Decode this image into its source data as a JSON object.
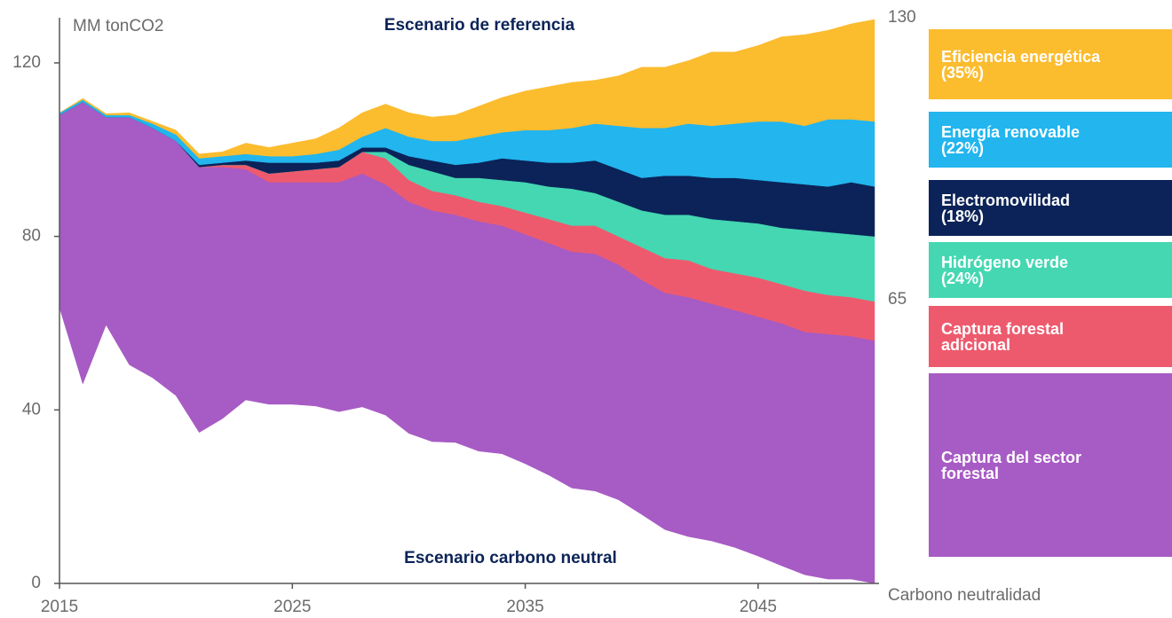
{
  "chart_data": {
    "type": "stacked_area",
    "title": "Escenario de referencia",
    "y_label": "MM tonCO2",
    "x": [
      2015,
      2016,
      2017,
      2018,
      2019,
      2020,
      2021,
      2022,
      2023,
      2024,
      2025,
      2026,
      2027,
      2028,
      2029,
      2030,
      2031,
      2032,
      2033,
      2034,
      2035,
      2036,
      2037,
      2038,
      2039,
      2040,
      2041,
      2042,
      2043,
      2044,
      2045,
      2046,
      2047,
      2048,
      2049,
      2050
    ],
    "xlim": [
      2015,
      2050
    ],
    "xticks": [
      2015,
      2025,
      2035,
      2045
    ],
    "ylim": [
      0,
      130
    ],
    "yticks": [
      0,
      40,
      80,
      120
    ],
    "end_labels": [
      130,
      65
    ],
    "end_note": "Carbono neutralidad",
    "series": [
      {
        "name": "Escenario carbono neutral",
        "color": "#ffffff",
        "legend": false,
        "values": [
          63.6,
          46,
          59.6,
          50.4,
          47.4,
          43.3,
          34.8,
          38,
          42.3,
          41.3,
          41.3,
          40.9,
          39.6,
          40.7,
          38.8,
          34.6,
          32.7,
          32.5,
          30.5,
          29.9,
          27.6,
          25,
          22,
          21.3,
          19.3,
          15.9,
          12.4,
          10.8,
          9.8,
          8.3,
          6.3,
          4.1,
          2,
          1,
          1,
          0
        ]
      },
      {
        "name": "Captura del sector\nforestal",
        "color": "#a75bc4",
        "values": [
          44.4,
          65,
          47.9,
          57.1,
          57.6,
          58.7,
          61.2,
          58,
          53.2,
          51.2,
          51.2,
          51.6,
          52.9,
          53.8,
          53.2,
          53.4,
          53.3,
          52.5,
          53,
          52.6,
          52.9,
          53.5,
          54.5,
          54.7,
          54.2,
          54.1,
          54.6,
          55.2,
          54.7,
          54.7,
          55.2,
          55.9,
          56,
          56.5,
          56,
          56
        ]
      },
      {
        "name": "Captura forestal\nadicional",
        "color": "#ee5a6d",
        "values": [
          0,
          0,
          0,
          0,
          0,
          0,
          0,
          0.5,
          1,
          2,
          2.5,
          3,
          3.5,
          5,
          6,
          5,
          4.5,
          4.5,
          4.5,
          4.5,
          5,
          5.5,
          6,
          6.5,
          6.5,
          7.5,
          8,
          8.5,
          8,
          8.5,
          9,
          9,
          9.5,
          9,
          9,
          9
        ]
      },
      {
        "name": "Hidrógeno verde\n(24%)",
        "color": "#44d7b2",
        "values": [
          0,
          0,
          0,
          0,
          0,
          0,
          0,
          0,
          0,
          0,
          0,
          0,
          0,
          0,
          1.5,
          3.5,
          4.5,
          4,
          5.5,
          6,
          7,
          7.5,
          8.5,
          7.5,
          8,
          8.5,
          10,
          10.5,
          11.5,
          12,
          12.5,
          13,
          14,
          14.5,
          14.5,
          15
        ]
      },
      {
        "name": "Electromovilidad\n(18%)",
        "color": "#0b2358",
        "values": [
          0,
          0,
          0,
          0,
          0,
          0,
          0.5,
          0.5,
          1,
          2.5,
          2,
          1.5,
          1.5,
          1,
          1,
          2,
          2.5,
          3,
          3.5,
          5,
          5,
          5.5,
          6,
          7.5,
          7.5,
          7.5,
          9,
          9,
          9.5,
          10,
          10,
          10.5,
          10.5,
          10.5,
          12,
          11.5
        ]
      },
      {
        "name": "Energía renovable\n(22%)",
        "color": "#22b5ee",
        "values": [
          0.5,
          0.5,
          0.5,
          0.5,
          1,
          1.5,
          1.5,
          1.5,
          1.5,
          1.5,
          1.5,
          2,
          2.5,
          2.5,
          4.5,
          4.5,
          4.5,
          5.5,
          6,
          6,
          7,
          7.5,
          8,
          8.5,
          10,
          11.5,
          11,
          12,
          12,
          12.5,
          13.5,
          14,
          13.5,
          15.5,
          14.5,
          15
        ]
      },
      {
        "name": "Eficiencia energética\n(35%)",
        "color": "#fbbc2e",
        "values": [
          0,
          0.3,
          0.3,
          0.5,
          0.5,
          1,
          1,
          1,
          2.5,
          2,
          3,
          3.5,
          5,
          5.5,
          5.5,
          5.5,
          5.5,
          6,
          7,
          8,
          9,
          10,
          10.5,
          10,
          11.5,
          14,
          14,
          14.5,
          17,
          16.5,
          17.5,
          19.5,
          21,
          20.5,
          22,
          23.5
        ]
      }
    ]
  }
}
